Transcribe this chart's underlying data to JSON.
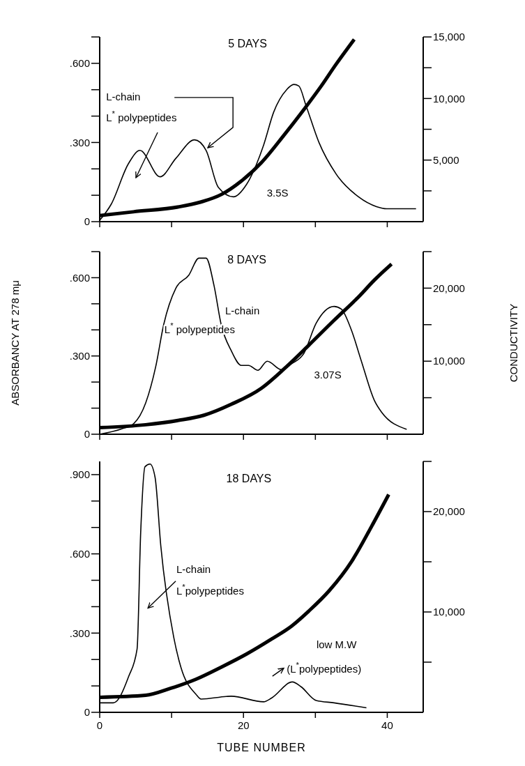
{
  "chart_data": [
    {
      "type": "line",
      "title": "5 DAYS",
      "xlim": [
        0,
        45
      ],
      "xticks": [
        0,
        10,
        20,
        30,
        40
      ],
      "ylim": [
        0,
        0.7
      ],
      "yticks": [
        {
          "value": 0,
          "label": "0"
        },
        {
          "value": 0.1,
          "label": null
        },
        {
          "value": 0.2,
          "label": null
        },
        {
          "value": 0.3,
          "label": ".300"
        },
        {
          "value": 0.4,
          "label": null
        },
        {
          "value": 0.5,
          "label": null
        },
        {
          "value": 0.6,
          "label": ".600"
        },
        {
          "value": 0.7,
          "label": null
        }
      ],
      "y2lim": [
        0,
        15000
      ],
      "y2ticks": [
        {
          "value": 2500,
          "label": null
        },
        {
          "value": 5000,
          "label": "5,000"
        },
        {
          "value": 7500,
          "label": null
        },
        {
          "value": 10000,
          "label": "10,000"
        },
        {
          "value": 12500,
          "label": null
        },
        {
          "value": 15000,
          "label": "15,000"
        }
      ],
      "tick_labels": "y",
      "annotations": [
        "L-chain",
        "L$^{*}$ polypeptides",
        "3.5S"
      ],
      "series": [
        {
          "color": "#000000",
          "x": [
            0,
            1.6,
            4,
            5.6,
            8.4,
            10.6,
            13.2,
            14.8,
            16.5,
            18.6,
            20.4,
            22.8,
            24.2,
            26,
            27,
            27.7,
            28.7,
            30.5,
            32.9,
            36,
            38.5,
            39.9,
            44
          ],
          "values": [
            0.005,
            0.066,
            0.22,
            0.27,
            0.17,
            0.24,
            0.31,
            0.27,
            0.13,
            0.094,
            0.14,
            0.29,
            0.415,
            0.5,
            0.52,
            0.514,
            0.44,
            0.3,
            0.18,
            0.094,
            0.057,
            0.049,
            0.049
          ]
        },
        {
          "color": "#000000",
          "axis": "y2",
          "x": [
            0,
            4.7,
            11,
            14.1,
            16.9,
            19.7,
            22.5,
            25.6,
            28.4,
            30.8,
            32.9,
            35.4
          ],
          "values": [
            500,
            800,
            1200,
            1600,
            2200,
            3300,
            4800,
            7000,
            9100,
            11000,
            12800,
            14800
          ]
        }
      ]
    },
    {
      "type": "line",
      "title": "8 DAYS",
      "ylabel": "ABSORBANCY AT 278 mμ",
      "y2label": "CONDUCTIVITY",
      "xlim": [
        0,
        45
      ],
      "xticks": [
        0,
        10,
        20,
        30,
        40
      ],
      "ylim": [
        0,
        0.7
      ],
      "yticks": [
        {
          "value": 0,
          "label": "0"
        },
        {
          "value": 0.1,
          "label": null
        },
        {
          "value": 0.2,
          "label": null
        },
        {
          "value": 0.3,
          "label": ".300"
        },
        {
          "value": 0.4,
          "label": null
        },
        {
          "value": 0.5,
          "label": null
        },
        {
          "value": 0.6,
          "label": ".600"
        },
        {
          "value": 0.7,
          "label": null
        }
      ],
      "y2lim": [
        0,
        25000
      ],
      "y2ticks": [
        {
          "value": 5000,
          "label": null
        },
        {
          "value": 10000,
          "label": "10,000"
        },
        {
          "value": 15000,
          "label": null
        },
        {
          "value": 20000,
          "label": "20,000"
        },
        {
          "value": 25000,
          "label": null
        }
      ],
      "tick_labels": "y",
      "annotations": [
        "L-chain",
        "L$^{*}$ polypeptides",
        "3.07S"
      ],
      "series": [
        {
          "color": "#000000",
          "x": [
            0,
            3,
            4.7,
            6.4,
            7.8,
            8.9,
            10.6,
            12.4,
            13.8,
            14.8,
            15.9,
            16.9,
            18.3,
            19.7,
            20.7,
            22,
            23.3,
            25.3,
            26.7,
            28.4,
            30.1,
            32.6,
            33.6,
            35,
            36.4,
            38.2,
            39.2,
            42.7
          ],
          "values": [
            0,
            0.02,
            0.04,
            0.12,
            0.26,
            0.42,
            0.56,
            0.61,
            0.675,
            0.675,
            0.57,
            0.42,
            0.32,
            0.264,
            0.264,
            0.245,
            0.28,
            0.247,
            0.27,
            0.31,
            0.425,
            0.49,
            0.48,
            0.4,
            0.28,
            0.13,
            0.085,
            0.019
          ]
        },
        {
          "color": "#000000",
          "axis": "y2",
          "x": [
            0,
            6.4,
            11,
            14.5,
            18.3,
            22.5,
            25.6,
            29.1,
            32.6,
            36.1,
            38.2,
            40.6
          ],
          "values": [
            900,
            1300,
            1900,
            2600,
            4100,
            6300,
            8900,
            12200,
            15600,
            18900,
            21100,
            23300
          ]
        }
      ]
    },
    {
      "type": "line",
      "title": "18 DAYS",
      "xlabel": "TUBE NUMBER",
      "xlim": [
        0,
        45
      ],
      "xticks": [
        0,
        {
          "value": 10,
          "label": null
        },
        20,
        {
          "value": 30,
          "label": null
        },
        40
      ],
      "ylim": [
        0,
        0.95
      ],
      "yticks": [
        {
          "value": 0,
          "label": "0"
        },
        {
          "value": 0.1,
          "label": null
        },
        {
          "value": 0.2,
          "label": null
        },
        {
          "value": 0.3,
          "label": ".300"
        },
        {
          "value": 0.4,
          "label": null
        },
        {
          "value": 0.5,
          "label": null
        },
        {
          "value": 0.6,
          "label": ".600"
        },
        {
          "value": 0.7,
          "label": null
        },
        {
          "value": 0.8,
          "label": null
        },
        {
          "value": 0.9,
          "label": ".900"
        }
      ],
      "y2lim": [
        0,
        25000
      ],
      "y2ticks": [
        {
          "value": 5000,
          "label": null
        },
        {
          "value": 10000,
          "label": "10,000"
        },
        {
          "value": 15000,
          "label": null
        },
        {
          "value": 20000,
          "label": "20,000"
        },
        {
          "value": 25000,
          "label": null
        }
      ],
      "annotations": [
        "L-chain",
        "L$^{*}$polypeptides",
        "low M.W",
        "(L$^{*}$polypeptides)"
      ],
      "series": [
        {
          "color": "#000000",
          "x": [
            0,
            1.9,
            4,
            5.2,
            5.7,
            6.3,
            7,
            7.7,
            8.5,
            10.3,
            11.3,
            13.4,
            14.1,
            17.6,
            18.3,
            22.8,
            23.9,
            26.8,
            28,
            30.1,
            32.6,
            37.1
          ],
          "values": [
            0.036,
            0.036,
            0.134,
            0.24,
            0.68,
            0.93,
            0.94,
            0.89,
            0.63,
            0.284,
            0.17,
            0.068,
            0.05,
            0.06,
            0.061,
            0.04,
            0.054,
            0.115,
            0.097,
            0.045,
            0.036,
            0.017
          ]
        },
        {
          "color": "#000000",
          "axis": "y2",
          "x": [
            0,
            6.4,
            9.9,
            13.4,
            16.9,
            20.4,
            23.9,
            26.7,
            29.1,
            31.9,
            35.1,
            37.8,
            40.2
          ],
          "values": [
            1500,
            1700,
            2400,
            3300,
            4500,
            5800,
            7300,
            8600,
            10100,
            12100,
            15100,
            18500,
            21700
          ]
        }
      ]
    }
  ]
}
